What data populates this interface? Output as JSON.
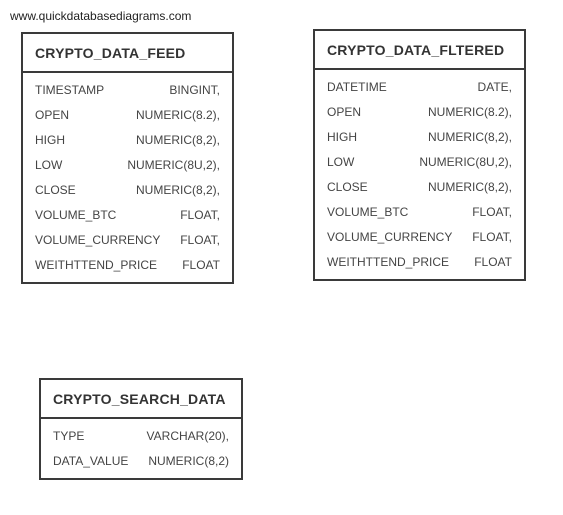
{
  "watermark": "www.quickdatabasediagrams.com",
  "tables": [
    {
      "name": "CRYPTO_DATA_FEED",
      "columns": [
        {
          "name": "TIMESTAMP",
          "type": "BINGINT,"
        },
        {
          "name": "OPEN",
          "type": "NUMERIC(8.2),"
        },
        {
          "name": "HIGH",
          "type": "NUMERIC(8,2),"
        },
        {
          "name": "LOW",
          "type": "NUMERIC(8U,2),"
        },
        {
          "name": "CLOSE",
          "type": "NUMERIC(8,2),"
        },
        {
          "name": "VOLUME_BTC",
          "type": "FLOAT,"
        },
        {
          "name": "VOLUME_CURRENCY",
          "type": "FLOAT,"
        },
        {
          "name": "WEITHTTEND_PRICE",
          "type": "FLOAT"
        }
      ]
    },
    {
      "name": "CRYPTO_DATA_FLTERED",
      "columns": [
        {
          "name": "DATETIME",
          "type": "DATE,"
        },
        {
          "name": "OPEN",
          "type": "NUMERIC(8.2),"
        },
        {
          "name": "HIGH",
          "type": "NUMERIC(8,2),"
        },
        {
          "name": "LOW",
          "type": "NUMERIC(8U,2),"
        },
        {
          "name": "CLOSE",
          "type": "NUMERIC(8,2),"
        },
        {
          "name": "VOLUME_BTC",
          "type": "FLOAT,"
        },
        {
          "name": "VOLUME_CURRENCY",
          "type": "FLOAT,"
        },
        {
          "name": "WEITHTTEND_PRICE",
          "type": "FLOAT"
        }
      ]
    },
    {
      "name": "CRYPTO_SEARCH_DATA",
      "columns": [
        {
          "name": "TYPE",
          "type": "VARCHAR(20),"
        },
        {
          "name": "DATA_VALUE",
          "type": "NUMERIC(8,2)"
        }
      ]
    }
  ]
}
